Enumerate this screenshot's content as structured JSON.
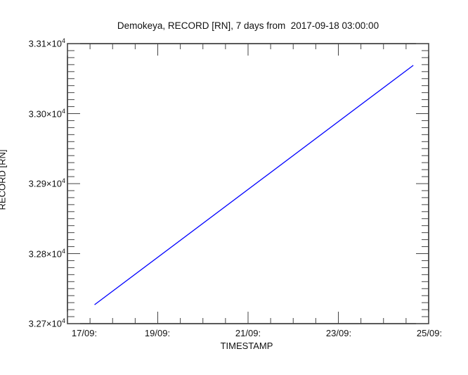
{
  "chart_data": {
    "type": "line",
    "title": "Demokeya, RECORD [RN], 7 days from  2017-09-18 03:00:00",
    "xlabel": "TIMESTAMP",
    "ylabel": "RECORD [RN]",
    "x_tick_labels": [
      "17/09:",
      "19/09:",
      "21/09:",
      "23/09:",
      "25/09:"
    ],
    "y_ticks": [
      {
        "m": "3.27×10",
        "e": "4",
        "value": 32700
      },
      {
        "m": "3.28×10",
        "e": "4",
        "value": 32800
      },
      {
        "m": "3.29×10",
        "e": "4",
        "value": 32900
      },
      {
        "m": "3.30×10",
        "e": "4",
        "value": 33000
      },
      {
        "m": "3.31×10",
        "e": "4",
        "value": 33100
      }
    ],
    "ylim": [
      32700,
      33100
    ],
    "y_major_step": 100,
    "y_minor_step": 10,
    "x_axis_span_days": 8,
    "x_major_step_days": 2,
    "x_minor_step_days": 0.5,
    "grid": false,
    "legend": false,
    "axis_color": "#222222",
    "tick_color": "#444444",
    "series": [
      {
        "name": "RECORD [RN]",
        "color": "#0000ff",
        "points": [
          {
            "timestamp": "2017-09-18 03:00:00",
            "axis_day": 0.6,
            "value": 32727
          },
          {
            "timestamp": "2017-09-25 03:00:00",
            "axis_day": 7.66,
            "value": 33069
          }
        ]
      }
    ]
  }
}
